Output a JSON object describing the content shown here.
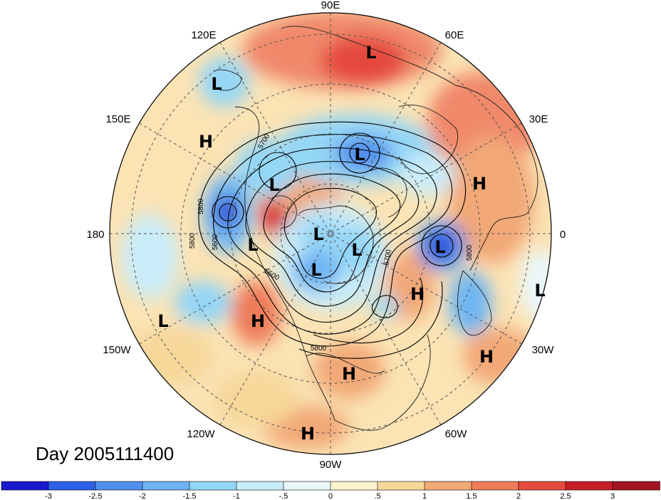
{
  "map": {
    "projection": "north-polar-stereographic",
    "date_label": "Day 2005111400",
    "longitude_labels": [
      "90E",
      "60E",
      "30E",
      "0",
      "30W",
      "60W",
      "90W",
      "120W",
      "150W",
      "180",
      "150E",
      "120E"
    ],
    "pressure_systems": [
      {
        "type": "L"
      },
      {
        "type": "L"
      },
      {
        "type": "H"
      },
      {
        "type": "L"
      },
      {
        "type": "H"
      },
      {
        "type": "L"
      },
      {
        "type": "L"
      },
      {
        "type": "L"
      },
      {
        "type": "L"
      },
      {
        "type": "L"
      },
      {
        "type": "L"
      },
      {
        "type": "H"
      },
      {
        "type": "L"
      },
      {
        "type": "H"
      },
      {
        "type": "L"
      },
      {
        "type": "H"
      },
      {
        "type": "H"
      },
      {
        "type": "H"
      },
      {
        "type": "L"
      }
    ],
    "contour_labels": [
      "5800",
      "5700",
      "5800",
      "5600",
      "5500",
      "5700",
      "5800",
      "5800"
    ]
  },
  "colorbar": {
    "ticks": [
      "-3",
      "-2.5",
      "-2",
      "-1.5",
      "-1",
      "-.5",
      "0",
      ".5",
      "1",
      "1.5",
      "2",
      "2.5",
      "3"
    ],
    "colors": [
      "#1a1ad0",
      "#2f5fe6",
      "#4f8fee",
      "#6eb5f3",
      "#94d6f6",
      "#c9ecf9",
      "#eaf7fb",
      "#fdf3cf",
      "#f7d79a",
      "#f2a877",
      "#ee7c5a",
      "#e54a3e",
      "#c91f27",
      "#a51422"
    ]
  }
}
